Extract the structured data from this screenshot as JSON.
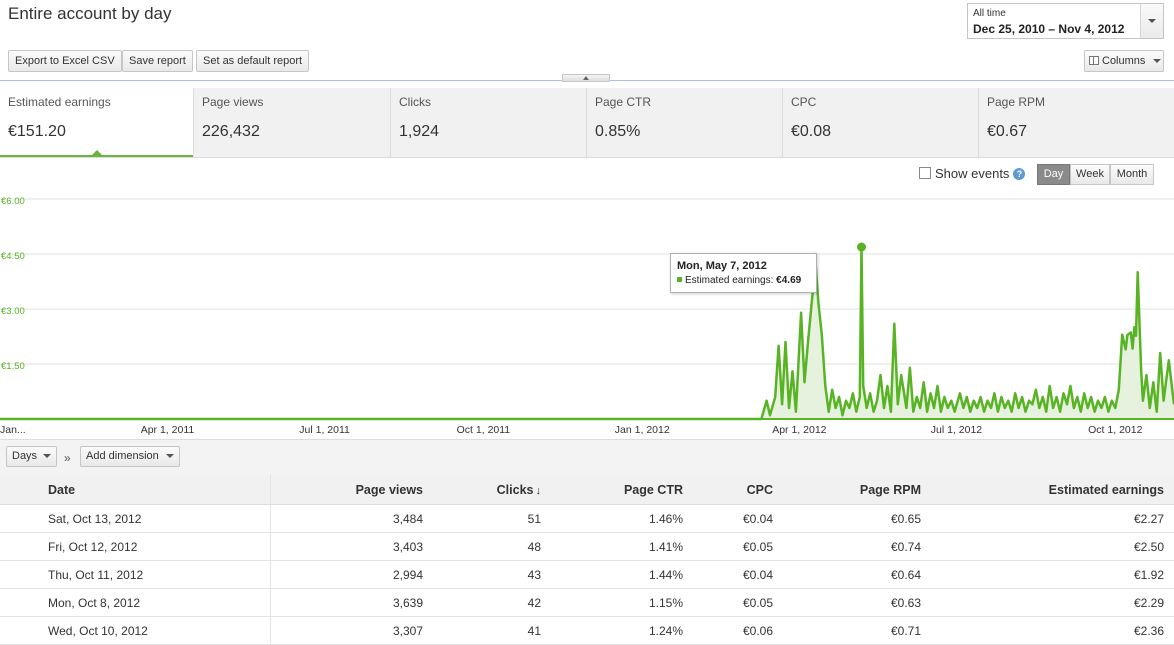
{
  "header": {
    "title": "Entire account by day",
    "date_range": {
      "label": "All time",
      "value": "Dec 25, 2010 – Nov 4, 2012"
    }
  },
  "toolbar": {
    "export_label": "Export to Excel CSV",
    "save_label": "Save report",
    "default_label": "Set as default report",
    "columns_label": "Columns"
  },
  "scorecards": [
    {
      "label": "Estimated earnings",
      "value": "€151.20"
    },
    {
      "label": "Page views",
      "value": "226,432"
    },
    {
      "label": "Clicks",
      "value": "1,924"
    },
    {
      "label": "Page CTR",
      "value": "0.85%"
    },
    {
      "label": "CPC",
      "value": "€0.08"
    },
    {
      "label": "Page RPM",
      "value": "€0.67"
    }
  ],
  "chart_controls": {
    "show_events": "Show events",
    "show_events_checked": false,
    "granularity": [
      "Day",
      "Week",
      "Month"
    ],
    "selected_granularity": "Day"
  },
  "chart_data": {
    "type": "area",
    "series": [
      {
        "name": "Estimated earnings",
        "color": "#58b325"
      }
    ],
    "y_ticks": [
      "€6.00",
      "€4.50",
      "€3.00",
      "€1.50"
    ],
    "ylim": [
      0,
      6
    ],
    "x_ticks": [
      "Jan...",
      "Apr 1, 2011",
      "Jul 1, 2011",
      "Oct 1, 2011",
      "Jan 1, 2012",
      "Apr 1, 2012",
      "Jul 1, 2012",
      "Oct 1, 2012"
    ],
    "x_range": [
      "2010-12-25",
      "2012-11-04"
    ],
    "points": [
      [
        "2010-12-25",
        0
      ],
      [
        "2012-03-10",
        0
      ],
      [
        "2012-03-13",
        0.5
      ],
      [
        "2012-03-15",
        0.1
      ],
      [
        "2012-03-18",
        0.6
      ],
      [
        "2012-03-20",
        2.0
      ],
      [
        "2012-03-22",
        0.4
      ],
      [
        "2012-03-24",
        2.1
      ],
      [
        "2012-03-26",
        0.3
      ],
      [
        "2012-03-28",
        1.3
      ],
      [
        "2012-03-30",
        0.2
      ],
      [
        "2012-04-02",
        2.9
      ],
      [
        "2012-04-04",
        1.0
      ],
      [
        "2012-04-06",
        2.1
      ],
      [
        "2012-04-09",
        3.6
      ],
      [
        "2012-04-10",
        4.5
      ],
      [
        "2012-04-12",
        3.2
      ],
      [
        "2012-04-14",
        2.3
      ],
      [
        "2012-04-16",
        0.9
      ],
      [
        "2012-04-18",
        0.2
      ],
      [
        "2012-04-20",
        0.8
      ],
      [
        "2012-04-22",
        0.3
      ],
      [
        "2012-04-24",
        0.6
      ],
      [
        "2012-04-26",
        0.1
      ],
      [
        "2012-04-28",
        0.5
      ],
      [
        "2012-04-30",
        0.3
      ],
      [
        "2012-05-02",
        0.7
      ],
      [
        "2012-05-04",
        0.2
      ],
      [
        "2012-05-06",
        0.6
      ],
      [
        "2012-05-07",
        4.69
      ],
      [
        "2012-05-08",
        0.9
      ],
      [
        "2012-05-10",
        0.3
      ],
      [
        "2012-05-12",
        0.7
      ],
      [
        "2012-05-14",
        0.2
      ],
      [
        "2012-05-16",
        0.5
      ],
      [
        "2012-05-18",
        1.2
      ],
      [
        "2012-05-20",
        0.3
      ],
      [
        "2012-05-22",
        0.9
      ],
      [
        "2012-05-24",
        0.2
      ],
      [
        "2012-05-26",
        2.6
      ],
      [
        "2012-05-28",
        0.4
      ],
      [
        "2012-05-30",
        1.2
      ],
      [
        "2012-06-02",
        0.3
      ],
      [
        "2012-06-04",
        1.4
      ],
      [
        "2012-06-06",
        0.2
      ],
      [
        "2012-06-08",
        0.6
      ],
      [
        "2012-06-10",
        0.3
      ],
      [
        "2012-06-12",
        1.0
      ],
      [
        "2012-06-14",
        0.2
      ],
      [
        "2012-06-16",
        0.7
      ],
      [
        "2012-06-18",
        0.3
      ],
      [
        "2012-06-20",
        0.9
      ],
      [
        "2012-06-22",
        0.2
      ],
      [
        "2012-06-24",
        0.6
      ],
      [
        "2012-06-26",
        0.3
      ],
      [
        "2012-06-28",
        0.5
      ],
      [
        "2012-06-30",
        0.2
      ],
      [
        "2012-07-03",
        0.7
      ],
      [
        "2012-07-05",
        0.3
      ],
      [
        "2012-07-07",
        0.6
      ],
      [
        "2012-07-09",
        0.2
      ],
      [
        "2012-07-11",
        0.5
      ],
      [
        "2012-07-13",
        0.3
      ],
      [
        "2012-07-15",
        0.6
      ],
      [
        "2012-07-17",
        0.2
      ],
      [
        "2012-07-19",
        0.5
      ],
      [
        "2012-07-21",
        0.3
      ],
      [
        "2012-07-23",
        0.7
      ],
      [
        "2012-07-25",
        0.2
      ],
      [
        "2012-07-27",
        0.6
      ],
      [
        "2012-07-29",
        0.3
      ],
      [
        "2012-07-31",
        0.5
      ],
      [
        "2012-08-02",
        0.2
      ],
      [
        "2012-08-04",
        0.7
      ],
      [
        "2012-08-06",
        0.3
      ],
      [
        "2012-08-08",
        0.6
      ],
      [
        "2012-08-10",
        0.2
      ],
      [
        "2012-08-12",
        0.5
      ],
      [
        "2012-08-14",
        0.4
      ],
      [
        "2012-08-16",
        0.8
      ],
      [
        "2012-08-18",
        0.3
      ],
      [
        "2012-08-20",
        0.6
      ],
      [
        "2012-08-22",
        0.2
      ],
      [
        "2012-08-24",
        0.9
      ],
      [
        "2012-08-26",
        0.3
      ],
      [
        "2012-08-28",
        0.6
      ],
      [
        "2012-08-30",
        0.2
      ],
      [
        "2012-09-01",
        0.7
      ],
      [
        "2012-09-03",
        0.4
      ],
      [
        "2012-09-05",
        0.9
      ],
      [
        "2012-09-07",
        0.3
      ],
      [
        "2012-09-09",
        0.6
      ],
      [
        "2012-09-11",
        0.2
      ],
      [
        "2012-09-13",
        0.7
      ],
      [
        "2012-09-15",
        0.3
      ],
      [
        "2012-09-17",
        0.6
      ],
      [
        "2012-09-19",
        0.2
      ],
      [
        "2012-09-21",
        0.5
      ],
      [
        "2012-09-23",
        0.3
      ],
      [
        "2012-09-25",
        0.6
      ],
      [
        "2012-09-27",
        0.2
      ],
      [
        "2012-09-29",
        0.5
      ],
      [
        "2012-10-01",
        0.3
      ],
      [
        "2012-10-03",
        0.8
      ],
      [
        "2012-10-05",
        2.3
      ],
      [
        "2012-10-07",
        1.9
      ],
      [
        "2012-10-08",
        2.29
      ],
      [
        "2012-10-10",
        2.36
      ],
      [
        "2012-10-11",
        1.92
      ],
      [
        "2012-10-12",
        2.5
      ],
      [
        "2012-10-13",
        2.27
      ],
      [
        "2012-10-14",
        4.0
      ],
      [
        "2012-10-15",
        2.6
      ],
      [
        "2012-10-16",
        1.3
      ],
      [
        "2012-10-17",
        0.5
      ],
      [
        "2012-10-19",
        1.2
      ],
      [
        "2012-10-21",
        0.3
      ],
      [
        "2012-10-23",
        1.0
      ],
      [
        "2012-10-25",
        0.2
      ],
      [
        "2012-10-27",
        1.8
      ],
      [
        "2012-10-29",
        0.5
      ],
      [
        "2012-11-01",
        1.6
      ],
      [
        "2012-11-04",
        0.4
      ]
    ],
    "tooltip": {
      "date": "Mon, May 7, 2012",
      "label": "Estimated earnings:",
      "value": "€4.69"
    }
  },
  "table_toolbar": {
    "days_label": "Days",
    "add_dimension_label": "Add dimension",
    "sep": "»"
  },
  "table": {
    "columns": [
      "Date",
      "Page views",
      "Clicks",
      "Page CTR",
      "CPC",
      "Page RPM",
      "Estimated earnings"
    ],
    "sort_indicator": "↓",
    "rows": [
      [
        "Sat, Oct 13, 2012",
        "3,484",
        "51",
        "1.46%",
        "€0.04",
        "€0.65",
        "€2.27"
      ],
      [
        "Fri, Oct 12, 2012",
        "3,403",
        "48",
        "1.41%",
        "€0.05",
        "€0.74",
        "€2.50"
      ],
      [
        "Thu, Oct 11, 2012",
        "2,994",
        "43",
        "1.44%",
        "€0.04",
        "€0.64",
        "€1.92"
      ],
      [
        "Mon, Oct 8, 2012",
        "3,639",
        "42",
        "1.15%",
        "€0.05",
        "€0.63",
        "€2.29"
      ],
      [
        "Wed, Oct 10, 2012",
        "3,307",
        "41",
        "1.24%",
        "€0.06",
        "€0.71",
        "€2.36"
      ]
    ]
  }
}
